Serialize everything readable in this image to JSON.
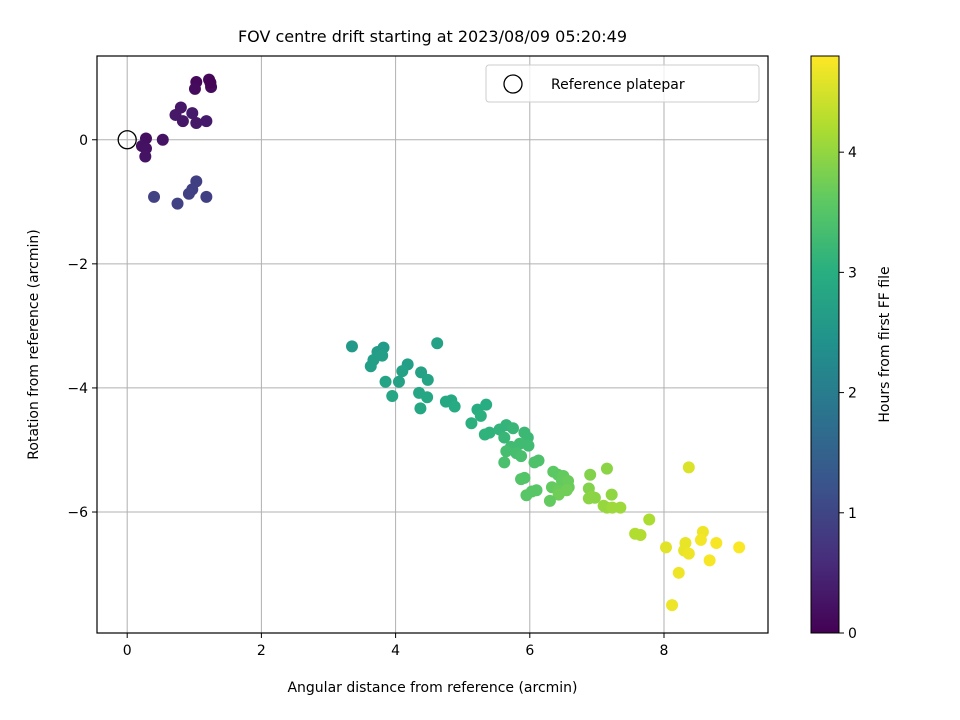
{
  "chart_data": {
    "type": "scatter",
    "title": "FOV centre drift starting at 2023/08/09 05:20:49",
    "xlabel": "Angular distance from reference (arcmin)",
    "ylabel": "Rotation from reference (arcmin)",
    "xlim": [
      -0.45,
      9.55
    ],
    "ylim": [
      -7.95,
      1.35
    ],
    "xticks": [
      0,
      2,
      4,
      6,
      8
    ],
    "yticks": [
      0,
      -2,
      -4,
      -6
    ],
    "grid": true,
    "legend": {
      "placement": "upper right",
      "entries": [
        "Reference platepar"
      ]
    },
    "reference_point": {
      "x": 0,
      "y": 0
    },
    "colorbar": {
      "label": "Hours from first FF file",
      "colormap": "viridis",
      "range": [
        0,
        4.8
      ],
      "ticks": [
        0,
        1,
        2,
        3,
        4
      ]
    },
    "points": [
      {
        "x": 1.03,
        "y": 0.93,
        "t": 0.1
      },
      {
        "x": 1.22,
        "y": 0.97,
        "t": 0.08
      },
      {
        "x": 1.25,
        "y": 0.85,
        "t": 0.12
      },
      {
        "x": 1.01,
        "y": 0.82,
        "t": 0.15
      },
      {
        "x": 1.24,
        "y": 0.92,
        "t": 0.05
      },
      {
        "x": 0.8,
        "y": 0.52,
        "t": 0.3
      },
      {
        "x": 0.72,
        "y": 0.4,
        "t": 0.32
      },
      {
        "x": 0.97,
        "y": 0.43,
        "t": 0.35
      },
      {
        "x": 0.83,
        "y": 0.3,
        "t": 0.3
      },
      {
        "x": 1.03,
        "y": 0.27,
        "t": 0.32
      },
      {
        "x": 1.18,
        "y": 0.3,
        "t": 0.35
      },
      {
        "x": 0.28,
        "y": 0.02,
        "t": 0.2
      },
      {
        "x": 0.22,
        "y": -0.1,
        "t": 0.22
      },
      {
        "x": 0.28,
        "y": -0.14,
        "t": 0.22
      },
      {
        "x": 0.27,
        "y": -0.27,
        "t": 0.25
      },
      {
        "x": 0.53,
        "y": 0.0,
        "t": 0.25
      },
      {
        "x": 1.03,
        "y": -0.67,
        "t": 0.9
      },
      {
        "x": 0.97,
        "y": -0.8,
        "t": 0.9
      },
      {
        "x": 0.92,
        "y": -0.87,
        "t": 0.92
      },
      {
        "x": 0.4,
        "y": -0.92,
        "t": 0.95
      },
      {
        "x": 0.75,
        "y": -1.03,
        "t": 0.95
      },
      {
        "x": 1.18,
        "y": -0.92,
        "t": 0.9
      },
      {
        "x": 3.35,
        "y": -3.33,
        "t": 2.6
      },
      {
        "x": 3.73,
        "y": -3.42,
        "t": 2.65
      },
      {
        "x": 3.82,
        "y": -3.35,
        "t": 2.62
      },
      {
        "x": 3.67,
        "y": -3.55,
        "t": 2.7
      },
      {
        "x": 3.8,
        "y": -3.48,
        "t": 2.68
      },
      {
        "x": 3.63,
        "y": -3.65,
        "t": 2.7
      },
      {
        "x": 4.18,
        "y": -3.62,
        "t": 2.72
      },
      {
        "x": 4.62,
        "y": -3.28,
        "t": 2.75
      },
      {
        "x": 4.1,
        "y": -3.73,
        "t": 2.78
      },
      {
        "x": 4.38,
        "y": -3.75,
        "t": 2.75
      },
      {
        "x": 3.85,
        "y": -3.9,
        "t": 2.8
      },
      {
        "x": 4.05,
        "y": -3.9,
        "t": 2.78
      },
      {
        "x": 4.48,
        "y": -3.87,
        "t": 2.8
      },
      {
        "x": 3.95,
        "y": -4.13,
        "t": 2.85
      },
      {
        "x": 4.35,
        "y": -4.08,
        "t": 2.85
      },
      {
        "x": 4.47,
        "y": -4.15,
        "t": 2.88
      },
      {
        "x": 4.37,
        "y": -4.33,
        "t": 2.88
      },
      {
        "x": 4.75,
        "y": -4.22,
        "t": 2.92
      },
      {
        "x": 4.83,
        "y": -4.2,
        "t": 2.92
      },
      {
        "x": 4.88,
        "y": -4.3,
        "t": 2.95
      },
      {
        "x": 5.22,
        "y": -4.35,
        "t": 3.0
      },
      {
        "x": 5.35,
        "y": -4.27,
        "t": 3.0
      },
      {
        "x": 5.27,
        "y": -4.45,
        "t": 3.05
      },
      {
        "x": 5.13,
        "y": -4.57,
        "t": 3.05
      },
      {
        "x": 5.4,
        "y": -4.72,
        "t": 3.1
      },
      {
        "x": 5.55,
        "y": -4.67,
        "t": 3.15
      },
      {
        "x": 5.65,
        "y": -4.6,
        "t": 3.15
      },
      {
        "x": 5.75,
        "y": -4.65,
        "t": 3.2
      },
      {
        "x": 5.33,
        "y": -4.75,
        "t": 3.1
      },
      {
        "x": 5.62,
        "y": -4.8,
        "t": 3.2
      },
      {
        "x": 5.92,
        "y": -4.72,
        "t": 3.25
      },
      {
        "x": 5.97,
        "y": -4.8,
        "t": 3.25
      },
      {
        "x": 5.85,
        "y": -4.9,
        "t": 3.3
      },
      {
        "x": 5.98,
        "y": -4.93,
        "t": 3.3
      },
      {
        "x": 5.72,
        "y": -4.95,
        "t": 3.3
      },
      {
        "x": 5.65,
        "y": -5.02,
        "t": 3.35
      },
      {
        "x": 5.8,
        "y": -5.05,
        "t": 3.35
      },
      {
        "x": 5.87,
        "y": -5.1,
        "t": 3.4
      },
      {
        "x": 5.62,
        "y": -5.2,
        "t": 3.4
      },
      {
        "x": 6.07,
        "y": -5.2,
        "t": 3.45
      },
      {
        "x": 6.13,
        "y": -5.17,
        "t": 3.45
      },
      {
        "x": 5.92,
        "y": -5.45,
        "t": 3.5
      },
      {
        "x": 5.87,
        "y": -5.47,
        "t": 3.5
      },
      {
        "x": 6.35,
        "y": -5.35,
        "t": 3.6
      },
      {
        "x": 6.42,
        "y": -5.4,
        "t": 3.6
      },
      {
        "x": 6.5,
        "y": -5.42,
        "t": 3.65
      },
      {
        "x": 6.48,
        "y": -5.5,
        "t": 3.65
      },
      {
        "x": 6.57,
        "y": -5.5,
        "t": 3.7
      },
      {
        "x": 6.33,
        "y": -5.6,
        "t": 3.65
      },
      {
        "x": 6.58,
        "y": -5.6,
        "t": 3.7
      },
      {
        "x": 6.1,
        "y": -5.65,
        "t": 3.55
      },
      {
        "x": 6.03,
        "y": -5.67,
        "t": 3.55
      },
      {
        "x": 6.42,
        "y": -5.65,
        "t": 3.7
      },
      {
        "x": 6.55,
        "y": -5.65,
        "t": 3.75
      },
      {
        "x": 6.43,
        "y": -5.72,
        "t": 3.75
      },
      {
        "x": 5.95,
        "y": -5.73,
        "t": 3.55
      },
      {
        "x": 6.3,
        "y": -5.82,
        "t": 3.65
      },
      {
        "x": 6.9,
        "y": -5.4,
        "t": 3.9
      },
      {
        "x": 7.15,
        "y": -5.3,
        "t": 3.95
      },
      {
        "x": 6.88,
        "y": -5.62,
        "t": 3.9
      },
      {
        "x": 6.92,
        "y": -5.75,
        "t": 3.95
      },
      {
        "x": 6.97,
        "y": -5.77,
        "t": 3.95
      },
      {
        "x": 7.22,
        "y": -5.72,
        "t": 4.0
      },
      {
        "x": 6.88,
        "y": -5.78,
        "t": 3.95
      },
      {
        "x": 7.1,
        "y": -5.9,
        "t": 4.05
      },
      {
        "x": 7.15,
        "y": -5.93,
        "t": 4.05
      },
      {
        "x": 7.23,
        "y": -5.93,
        "t": 4.1
      },
      {
        "x": 7.35,
        "y": -5.93,
        "t": 4.1
      },
      {
        "x": 7.78,
        "y": -6.12,
        "t": 4.2
      },
      {
        "x": 7.57,
        "y": -6.35,
        "t": 4.25
      },
      {
        "x": 7.65,
        "y": -6.37,
        "t": 4.25
      },
      {
        "x": 8.37,
        "y": -5.28,
        "t": 4.55
      },
      {
        "x": 8.03,
        "y": -6.57,
        "t": 4.6
      },
      {
        "x": 8.32,
        "y": -6.5,
        "t": 4.65
      },
      {
        "x": 8.3,
        "y": -6.62,
        "t": 4.65
      },
      {
        "x": 8.37,
        "y": -6.67,
        "t": 4.7
      },
      {
        "x": 8.58,
        "y": -6.32,
        "t": 4.7
      },
      {
        "x": 8.55,
        "y": -6.45,
        "t": 4.72
      },
      {
        "x": 8.78,
        "y": -6.5,
        "t": 4.75
      },
      {
        "x": 8.68,
        "y": -6.78,
        "t": 4.75
      },
      {
        "x": 9.12,
        "y": -6.57,
        "t": 4.78
      },
      {
        "x": 8.22,
        "y": -6.98,
        "t": 4.7
      },
      {
        "x": 8.12,
        "y": -7.5,
        "t": 4.68
      }
    ]
  }
}
